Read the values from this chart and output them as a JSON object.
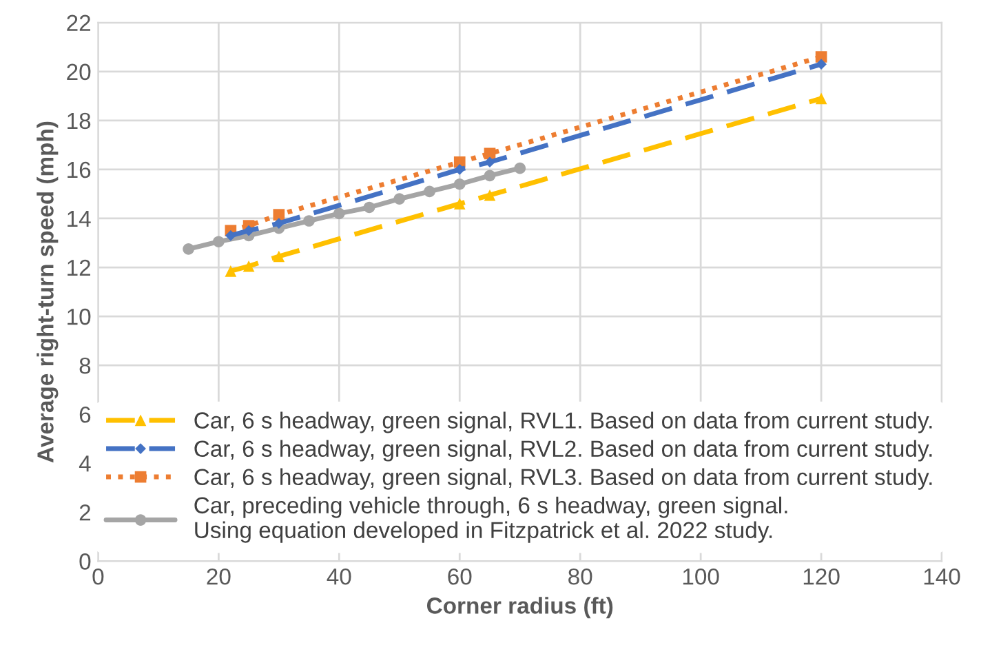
{
  "chart_data": {
    "type": "line",
    "xlabel": "Corner radius (ft)",
    "ylabel": "Average right-turn speed (mph)",
    "xlim": [
      0,
      140
    ],
    "xticks": [
      0,
      20,
      40,
      60,
      80,
      100,
      120,
      140
    ],
    "ylim": [
      0,
      22
    ],
    "yticks": [
      0,
      2,
      4,
      6,
      8,
      10,
      12,
      14,
      16,
      18,
      20,
      22
    ],
    "grid": true,
    "legend": "bottom",
    "series": [
      {
        "name": "Car, 6 s headway, green signal, RVL1. Based on data from current study.",
        "color": "#ffc000",
        "marker": "triangle",
        "line_style": "dashed",
        "x": [
          22,
          25,
          30,
          60,
          65,
          120
        ],
        "values": [
          11.85,
          12.05,
          12.45,
          14.6,
          14.95,
          18.9
        ]
      },
      {
        "name": "Car, 6 s headway, green signal, RVL2. Based on data from current study.",
        "color": "#4472c4",
        "marker": "diamond",
        "line_style": "dashed",
        "x": [
          22,
          25,
          30,
          60,
          65,
          120
        ],
        "values": [
          13.3,
          13.5,
          13.8,
          16.0,
          16.3,
          20.3
        ]
      },
      {
        "name": "Car, 6 s headway, green signal, RVL3. Based on data from current study.",
        "color": "#ed7d31",
        "marker": "square",
        "line_style": "dotted",
        "x": [
          22,
          25,
          30,
          60,
          65,
          120
        ],
        "values": [
          13.5,
          13.7,
          14.15,
          16.3,
          16.65,
          20.6
        ]
      },
      {
        "name": "Car, preceding vehicle through, 6 s headway, green signal.\nUsing equation developed in Fitzpatrick et al. 2022 study.",
        "color": "#a5a5a5",
        "marker": "circle",
        "line_style": "solid",
        "x": [
          15,
          20,
          25,
          30,
          35,
          40,
          45,
          50,
          55,
          60,
          65,
          70
        ],
        "values": [
          12.75,
          13.05,
          13.3,
          13.6,
          13.9,
          14.2,
          14.45,
          14.8,
          15.1,
          15.4,
          15.75,
          16.05
        ]
      }
    ]
  }
}
